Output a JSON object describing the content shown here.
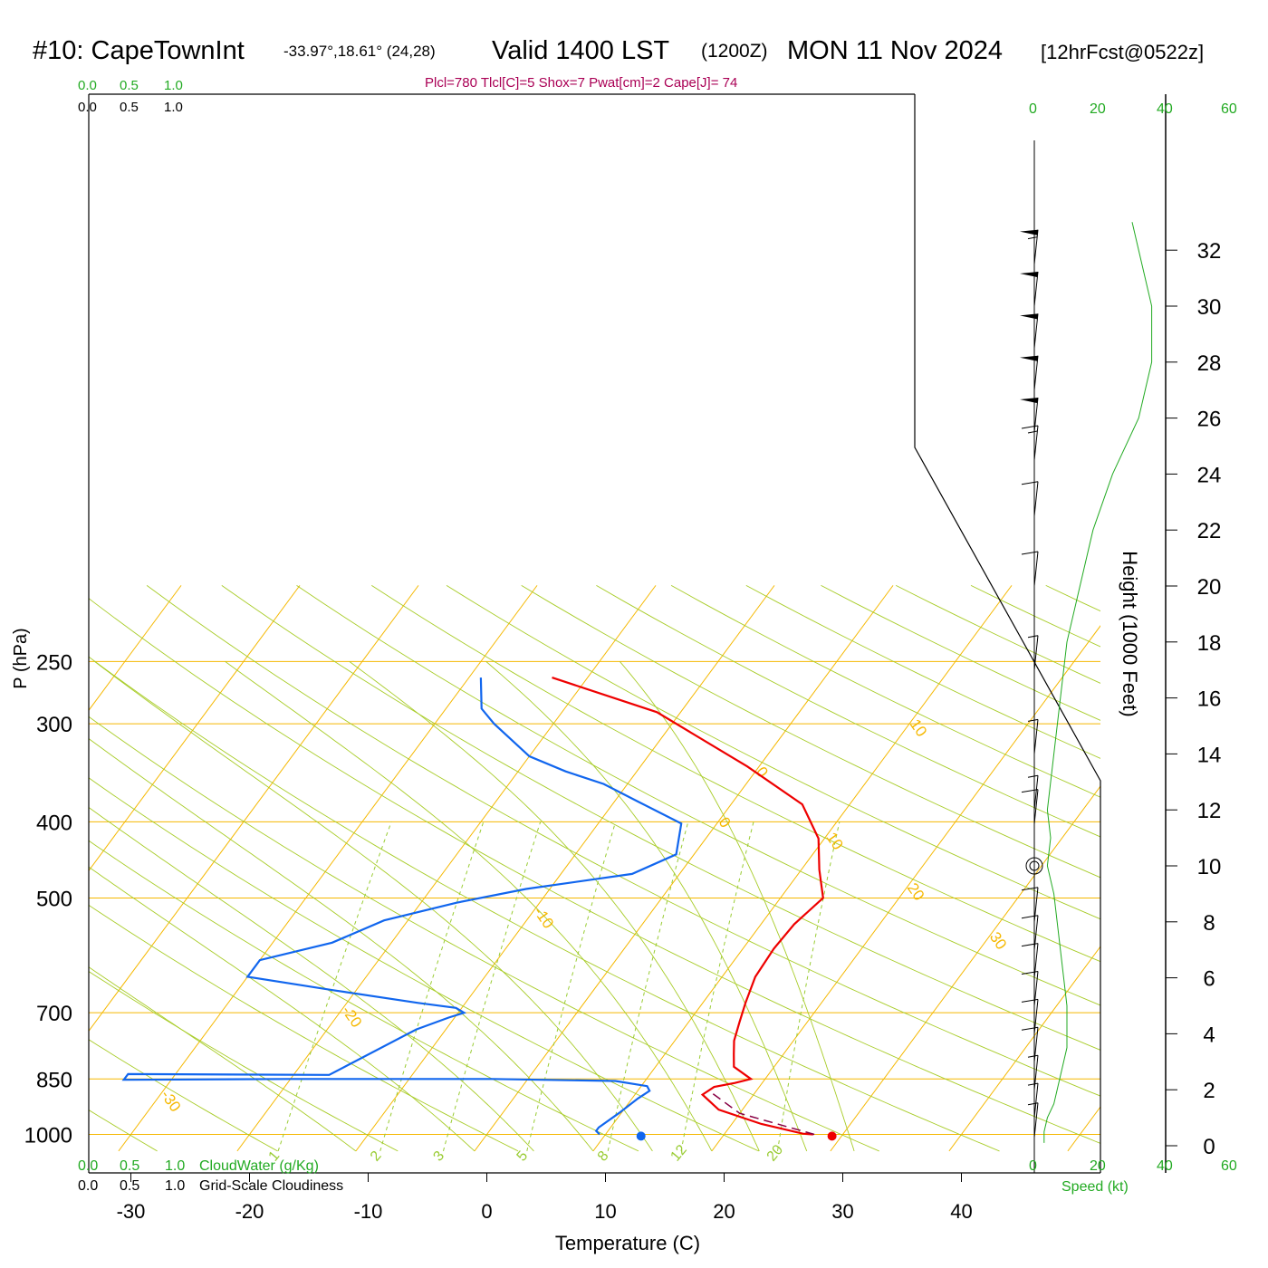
{
  "header": {
    "station": "#10: CapeTownInt",
    "coords": "-33.97°,18.61° (24,28)",
    "valid": "Valid 1400 LST",
    "zulu": "(1200Z)",
    "date": "MON 11 Nov 2024",
    "forecast": "[12hrFcst@0522z]",
    "params": "Plcl=780 Tlcl[C]=5 Shox=7 Pwat[cm]=2 Cape[J]= 74"
  },
  "cloud_scale": {
    "ticks": [
      "0.0",
      "0.5",
      "1.0"
    ],
    "cloudwater_label": "CloudWater (g/Kg)",
    "cloudiness_label": "Grid-Scale Cloudiness"
  },
  "wind_scale": {
    "ticks": [
      "0",
      "20",
      "40",
      "60"
    ],
    "label": "Speed (kt)"
  },
  "colors": {
    "isotherm": "#f5b800",
    "dry_adiabat": "#a8cc28",
    "moist_adiabat": "#a8cc28",
    "mixing_ratio": "#99cc33",
    "temperature": "#ee0000",
    "dewpoint": "#1166ee",
    "parcel": "#880044",
    "params_text": "#aa0055",
    "scale_green": "#22aa22"
  },
  "chart_data": {
    "type": "line",
    "title": "",
    "xlabel": "Temperature (C)",
    "ylabel": "P (hPa)",
    "y2label": "Height (1000 Feet)",
    "x_ticks": [
      -30,
      -20,
      -10,
      0,
      10,
      20,
      30,
      40
    ],
    "pressure_ticks": [
      250,
      300,
      400,
      500,
      700,
      850,
      1000
    ],
    "height_ticks_kft": [
      0,
      2,
      4,
      6,
      8,
      10,
      12,
      14,
      16,
      18,
      20,
      22,
      24,
      26,
      28,
      30,
      32
    ],
    "xlim": [
      -34,
      36
    ],
    "plim": [
      250,
      1050
    ],
    "isotherm_labels": [
      {
        "t": 10,
        "p": 300,
        "text": "10"
      },
      {
        "t": 0,
        "p": 400,
        "text": "0"
      },
      {
        "t": -10,
        "p": 520,
        "text": "-10"
      },
      {
        "t": -20,
        "p": 695,
        "text": "-20"
      },
      {
        "t": -30,
        "p": 890,
        "text": "-30"
      },
      {
        "t": 0,
        "p": 345,
        "text": "0"
      },
      {
        "t": 10,
        "p": 418,
        "text": "10"
      },
      {
        "t": 20,
        "p": 485,
        "text": "20"
      },
      {
        "t": 30,
        "p": 560,
        "text": "30"
      }
    ],
    "mixing_ratio_labels": [
      "1",
      "2",
      "3",
      "5",
      "8",
      "12",
      "20"
    ],
    "mixing_ratio_values": [
      1,
      2,
      3,
      5,
      8,
      12,
      20
    ],
    "series": [
      {
        "name": "Temperature",
        "points": [
          [
            27.5,
            1000
          ],
          [
            26.6,
            998
          ],
          [
            22.5,
            970
          ],
          [
            18,
            930
          ],
          [
            15.7,
            890
          ],
          [
            16.2,
            870
          ],
          [
            17.7,
            860
          ],
          [
            18.8,
            850
          ],
          [
            16.6,
            820
          ],
          [
            15.8,
            790
          ],
          [
            15,
            760
          ],
          [
            14.3,
            720
          ],
          [
            13.6,
            680
          ],
          [
            12.8,
            630
          ],
          [
            12.6,
            580
          ],
          [
            12.8,
            540
          ],
          [
            13.6,
            500
          ],
          [
            11.5,
            460
          ],
          [
            9.5,
            420
          ],
          [
            6,
            380
          ],
          [
            -1,
            340
          ],
          [
            -12,
            290
          ],
          [
            -23,
            262
          ]
        ]
      },
      {
        "name": "Dewpoint",
        "points": [
          [
            9.5,
            1000
          ],
          [
            9,
            990
          ],
          [
            9,
            980
          ],
          [
            9.8,
            940
          ],
          [
            10.5,
            900
          ],
          [
            11,
            880
          ],
          [
            10.5,
            868
          ],
          [
            7.5,
            855
          ],
          [
            -3,
            850
          ],
          [
            -20,
            850
          ],
          [
            -34,
            852
          ],
          [
            -34,
            838
          ],
          [
            -17,
            840
          ],
          [
            -12.5,
            735
          ],
          [
            -10.5,
            710
          ],
          [
            -9.5,
            700
          ],
          [
            -10.5,
            690
          ],
          [
            -14,
            680
          ],
          [
            -22,
            655
          ],
          [
            -30,
            630
          ],
          [
            -30,
            600
          ],
          [
            -25,
            570
          ],
          [
            -22,
            534
          ],
          [
            -17,
            507
          ],
          [
            -12,
            487
          ],
          [
            -4,
            466
          ],
          [
            -1.5,
            440
          ],
          [
            -3,
            402
          ],
          [
            -8,
            377
          ],
          [
            -12,
            358
          ],
          [
            -16,
            345
          ],
          [
            -20,
            330
          ],
          [
            -25,
            300
          ],
          [
            -27,
            287
          ],
          [
            -29,
            262
          ]
        ]
      },
      {
        "name": "Parcel",
        "points": [
          [
            27.6,
            1000
          ],
          [
            20,
            940
          ],
          [
            16,
            880
          ]
        ]
      }
    ],
    "surface_points": [
      {
        "name": "surface-temperature",
        "t": 29.2,
        "p": 1005
      },
      {
        "name": "surface-dewpoint",
        "t": 13.1,
        "p": 1005
      }
    ],
    "wind_profile_kt": [
      {
        "h": 0.1,
        "speed": 3
      },
      {
        "h": 0.5,
        "speed": 3
      },
      {
        "h": 1,
        "speed": 4
      },
      {
        "h": 1.5,
        "speed": 6
      },
      {
        "h": 2,
        "speed": 7
      },
      {
        "h": 2.5,
        "speed": 8
      },
      {
        "h": 3,
        "speed": 9
      },
      {
        "h": 3.5,
        "speed": 10
      },
      {
        "h": 4,
        "speed": 10
      },
      {
        "h": 5,
        "speed": 10
      },
      {
        "h": 6,
        "speed": 9
      },
      {
        "h": 7,
        "speed": 8
      },
      {
        "h": 8,
        "speed": 7
      },
      {
        "h": 9,
        "speed": 6
      },
      {
        "h": 10,
        "speed": 4
      },
      {
        "h": 11,
        "speed": 5
      },
      {
        "h": 12,
        "speed": 4
      },
      {
        "h": 14,
        "speed": 6
      },
      {
        "h": 16,
        "speed": 8
      },
      {
        "h": 18,
        "speed": 10
      },
      {
        "h": 20,
        "speed": 14
      },
      {
        "h": 22,
        "speed": 18
      },
      {
        "h": 24,
        "speed": 24
      },
      {
        "h": 26,
        "speed": 32
      },
      {
        "h": 28,
        "speed": 36
      },
      {
        "h": 30,
        "speed": 36
      },
      {
        "h": 32,
        "speed": 32
      },
      {
        "h": 33,
        "speed": 30
      }
    ],
    "wind_barbs": [
      {
        "h": 0.3,
        "speed": 5
      },
      {
        "h": 1,
        "speed": 5
      },
      {
        "h": 2,
        "speed": 8
      },
      {
        "h": 3,
        "speed": 10
      },
      {
        "h": 4,
        "speed": 12
      },
      {
        "h": 5,
        "speed": 12
      },
      {
        "h": 6,
        "speed": 10
      },
      {
        "h": 7,
        "speed": 10
      },
      {
        "h": 8,
        "speed": 12
      },
      {
        "h": 11.5,
        "speed": 10
      },
      {
        "h": 12,
        "speed": 5
      },
      {
        "h": 14,
        "speed": 5
      },
      {
        "h": 17,
        "speed": 5
      },
      {
        "h": 20,
        "speed": 10
      },
      {
        "h": 22.5,
        "speed": 10
      },
      {
        "h": 24.5,
        "speed": 15
      },
      {
        "h": 25.5,
        "speed": 50
      },
      {
        "h": 27,
        "speed": 50
      },
      {
        "h": 28.5,
        "speed": 50
      },
      {
        "h": 30,
        "speed": 50
      },
      {
        "h": 31.5,
        "speed": 55
      }
    ]
  }
}
